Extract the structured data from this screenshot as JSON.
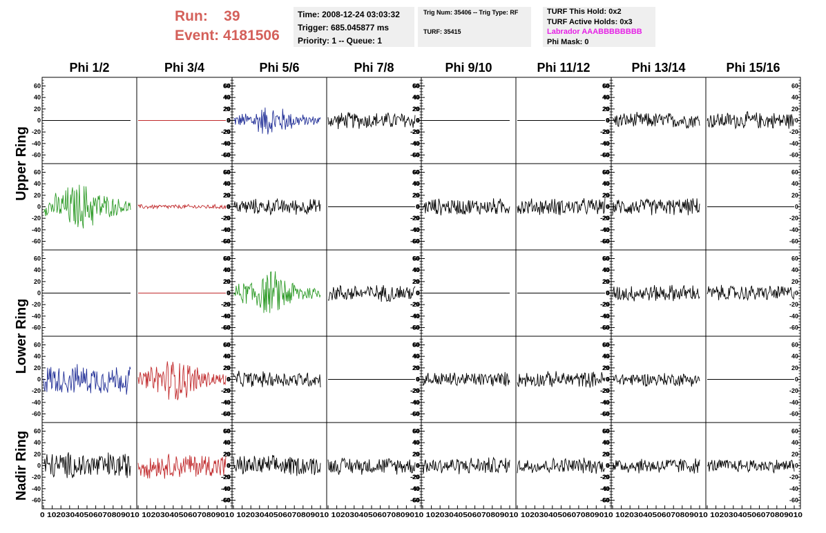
{
  "header": {
    "run_label": "Run:",
    "run_value": "39",
    "event_label": "Event:",
    "event_value": "4181506",
    "time": "Time: 2008-12-24 03:03:32",
    "trigger": "Trigger: 685.045877 ms",
    "priority": "Priority: 1 -- Queue: 1",
    "trig_num": "Trig Num: 35406 -- Trig Type: RF",
    "turf": "TURF: 35415",
    "turf_hold": "TURF This Hold: 0x2",
    "turf_active": "TURF Active Holds: 0x3",
    "labrador": "Labrador AAABBBBBBBB",
    "phi_mask": "Phi Mask: 0"
  },
  "colors": {
    "run_text": "#d4605a",
    "labrador_text": "#e51fe5",
    "info_box_bg": "#efefef",
    "black_trace": "#000000",
    "blue_trace": "#1f2d96",
    "green_trace": "#2c9a26",
    "red_trace": "#c0282a"
  },
  "chart_data": {
    "type": "line",
    "columns": [
      "Phi 1/2",
      "Phi 3/4",
      "Phi 5/6",
      "Phi 7/8",
      "Phi 9/10",
      "Phi 11/12",
      "Phi 13/14",
      "Phi 15/16"
    ],
    "row_labels": [
      {
        "label": "Upper Ring",
        "rows": [
          0,
          1
        ]
      },
      {
        "label": "Lower Ring",
        "rows": [
          2,
          3
        ]
      },
      {
        "label": "Nadir Ring",
        "rows": [
          4
        ]
      }
    ],
    "y_ticks": [
      "60",
      "40",
      "20",
      "0",
      "-20",
      "-40",
      "-60"
    ],
    "y_tick_values": [
      60,
      40,
      20,
      0,
      -20,
      -40,
      -60
    ],
    "ylim": [
      -75,
      75
    ],
    "xlim": [
      0,
      100
    ],
    "x_ticks": [
      "0",
      "10",
      "20",
      "30",
      "40",
      "50",
      "60",
      "70",
      "80",
      "90",
      "100"
    ],
    "x_tick_values": [
      0,
      10,
      20,
      30,
      40,
      50,
      60,
      70,
      80,
      90,
      100
    ],
    "x_axis_strip": "0 10203040506070809010 10203040506070809010 10203040506070809010 10203040506070809010 10203040506070809010 10203040506070809010 10203040506070809010 10203040506070809010",
    "panels": [
      [
        {
          "color": "black",
          "amp": 0,
          "env": "flat"
        },
        {
          "color": "red",
          "amp": 0,
          "env": "flat"
        },
        {
          "color": "blue",
          "amp": 22,
          "env": "burst"
        },
        {
          "color": "black",
          "amp": 15,
          "env": "noise"
        },
        {
          "color": "black",
          "amp": 0,
          "env": "flat"
        },
        {
          "color": "black",
          "amp": 0,
          "env": "flat"
        },
        {
          "color": "black",
          "amp": 14,
          "env": "noise"
        },
        {
          "color": "black",
          "amp": 15,
          "env": "noise"
        }
      ],
      [
        {
          "color": "green",
          "amp": 35,
          "env": "burst"
        },
        {
          "color": "red",
          "amp": 4,
          "env": "noise"
        },
        {
          "color": "black",
          "amp": 14,
          "env": "noise"
        },
        {
          "color": "black",
          "amp": 0,
          "env": "flat"
        },
        {
          "color": "black",
          "amp": 15,
          "env": "noise"
        },
        {
          "color": "black",
          "amp": 15,
          "env": "noise"
        },
        {
          "color": "black",
          "amp": 15,
          "env": "noise"
        },
        {
          "color": "black",
          "amp": 0,
          "env": "flat"
        }
      ],
      [
        {
          "color": "black",
          "amp": 0,
          "env": "flat"
        },
        {
          "color": "red",
          "amp": 0,
          "env": "flat"
        },
        {
          "color": "green",
          "amp": 32,
          "env": "burst"
        },
        {
          "color": "black",
          "amp": 15,
          "env": "noise"
        },
        {
          "color": "black",
          "amp": 0,
          "env": "flat"
        },
        {
          "color": "black",
          "amp": 0,
          "env": "flat"
        },
        {
          "color": "black",
          "amp": 15,
          "env": "noise"
        },
        {
          "color": "black",
          "amp": 14,
          "env": "noise"
        }
      ],
      [
        {
          "color": "blue",
          "amp": 26,
          "env": "noise"
        },
        {
          "color": "red",
          "amp": 32,
          "env": "burst"
        },
        {
          "color": "black",
          "amp": 14,
          "env": "noise"
        },
        {
          "color": "black",
          "amp": 0,
          "env": "flat"
        },
        {
          "color": "black",
          "amp": 13,
          "env": "noise"
        },
        {
          "color": "black",
          "amp": 14,
          "env": "noise"
        },
        {
          "color": "black",
          "amp": 12,
          "env": "noise"
        },
        {
          "color": "black",
          "amp": 0,
          "env": "flat"
        }
      ],
      [
        {
          "color": "black",
          "amp": 24,
          "env": "noise"
        },
        {
          "color": "red",
          "amp": 22,
          "env": "noise"
        },
        {
          "color": "black",
          "amp": 18,
          "env": "noise"
        },
        {
          "color": "black",
          "amp": 15,
          "env": "noise"
        },
        {
          "color": "black",
          "amp": 15,
          "env": "noise"
        },
        {
          "color": "black",
          "amp": 14,
          "env": "noise"
        },
        {
          "color": "black",
          "amp": 14,
          "env": "noise"
        },
        {
          "color": "black",
          "amp": 12,
          "env": "noise"
        }
      ]
    ]
  }
}
